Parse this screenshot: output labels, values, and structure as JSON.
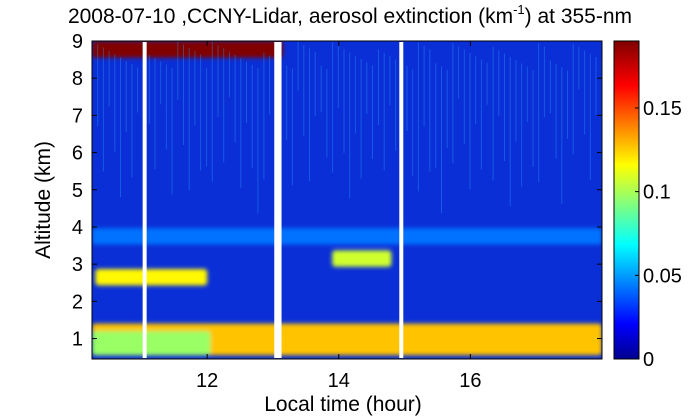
{
  "chart_data": {
    "type": "heatmap",
    "title": {
      "prefix": "2008-07-10 ,CCNY-Lidar, aerosol extinction (km",
      "superscript": "-1",
      "suffix": ") at 355-nm"
    },
    "xlabel": "Local time (hour)",
    "ylabel": "Altitude (km)",
    "xlim": [
      10.25,
      18.0
    ],
    "ylim": [
      0.45,
      9.0
    ],
    "x_ticks": [
      12,
      14,
      16
    ],
    "x_tick_labels": [
      "12",
      "14",
      "16"
    ],
    "y_ticks": [
      1,
      2,
      3,
      4,
      5,
      6,
      7,
      8,
      9
    ],
    "y_tick_labels": [
      "1",
      "2",
      "3",
      "4",
      "5",
      "6",
      "7",
      "8",
      "9"
    ],
    "colorbar": {
      "range": [
        0,
        0.19
      ],
      "ticks": [
        0,
        0.05,
        0.1,
        0.15
      ],
      "tick_labels": [
        "0",
        "0.05",
        "0.1",
        "0.15"
      ],
      "colormap": "jet"
    },
    "data_gaps_hours": [
      11.05,
      13.05,
      13.1,
      14.95
    ],
    "layers": [
      {
        "feature": "boundary layer",
        "start": 10.25,
        "end": 18.0,
        "altitude_bottom": 0.55,
        "altitude_top": 1.4,
        "extinction": 0.13
      },
      {
        "feature": "boundary layer (morning, weaker)",
        "start": 10.25,
        "end": 12.05,
        "altitude_bottom": 0.55,
        "altitude_top": 1.2,
        "extinction": 0.1
      },
      {
        "feature": "residual layer",
        "start": 10.3,
        "end": 12.0,
        "altitude_center": 2.65,
        "extinction": 0.12
      },
      {
        "feature": "elevated layer",
        "start": 13.9,
        "end": 14.8,
        "altitude_center": 3.15,
        "extinction": 0.11
      },
      {
        "feature": "upper aerosol layer",
        "start": 10.25,
        "end": 18.0,
        "altitude_center": 3.75,
        "extinction": 0.045
      },
      {
        "feature": "cloud / saturated",
        "start": 10.25,
        "end": 13.15,
        "altitude_bottom": 8.55,
        "altitude_top": 9.0,
        "extinction": 0.19
      }
    ]
  }
}
